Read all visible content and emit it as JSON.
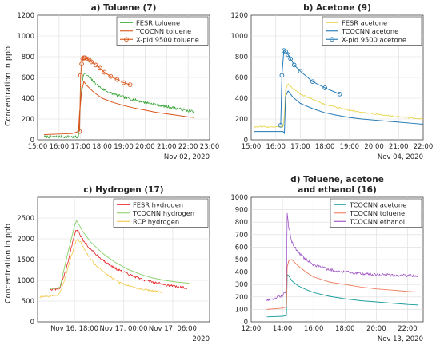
{
  "y_axis_label": "Concentration in ppb",
  "chart_data": [
    {
      "id": "a",
      "type": "line",
      "title": "a) Toluene (7)",
      "title_lines": [
        "a) Toluene (7)"
      ],
      "ylabel": "Concentration in ppb",
      "xlabel": "",
      "xlim": [
        15,
        23
      ],
      "ylim": [
        0,
        1200
      ],
      "grid": true,
      "legend_position": "top-right",
      "x_ticks": [
        {
          "v": 15,
          "label": "15:00"
        },
        {
          "v": 16,
          "label": "16:00"
        },
        {
          "v": 17,
          "label": "17:00"
        },
        {
          "v": 18,
          "label": "18:00"
        },
        {
          "v": 19,
          "label": "19:00"
        },
        {
          "v": 20,
          "label": "20:00"
        },
        {
          "v": 21,
          "label": "21:00"
        },
        {
          "v": 22,
          "label": "22:00"
        },
        {
          "v": 23,
          "label": "23:00"
        }
      ],
      "y_ticks": [
        0,
        200,
        400,
        600,
        800,
        1000,
        1200
      ],
      "date_label": "Nov 02, 2020",
      "series": [
        {
          "name": "FESR toluene",
          "color": "#2ca02c",
          "noisy": true,
          "noise": 14,
          "x": [
            15.3,
            16.5,
            16.85,
            16.9,
            16.95,
            17.05,
            17.15,
            17.3,
            17.6,
            18.0,
            18.5,
            19.0,
            19.5,
            20.0,
            20.5,
            21.0,
            21.5,
            22.0,
            22.3
          ],
          "y": [
            30,
            30,
            25,
            30,
            250,
            520,
            640,
            620,
            560,
            490,
            440,
            410,
            385,
            360,
            340,
            320,
            300,
            280,
            270
          ]
        },
        {
          "name": "TCOCNN toluene",
          "color": "#d95319",
          "x": [
            15.3,
            16.0,
            16.6,
            16.9,
            16.95,
            17.05,
            17.15,
            17.3,
            17.6,
            18.0,
            18.5,
            19.0,
            19.5,
            20.0,
            20.5,
            21.0,
            21.5,
            22.0,
            22.3
          ],
          "y": [
            50,
            55,
            60,
            80,
            250,
            470,
            560,
            520,
            460,
            400,
            360,
            330,
            305,
            285,
            265,
            250,
            235,
            220,
            215
          ]
        },
        {
          "name": "X-pid 9500 toluene",
          "color": "#d95319",
          "markers": true,
          "x": [
            16.95,
            17.0,
            17.05,
            17.1,
            17.15,
            17.2,
            17.3,
            17.4,
            17.5,
            17.7,
            17.9,
            18.1,
            18.4,
            18.7,
            19.0,
            19.3
          ],
          "y": [
            80,
            620,
            730,
            780,
            790,
            790,
            780,
            770,
            750,
            720,
            690,
            650,
            610,
            580,
            550,
            530
          ]
        }
      ]
    },
    {
      "id": "b",
      "type": "line",
      "title": "b) Acetone (9)",
      "title_lines": [
        "b) Acetone (9)"
      ],
      "ylabel": "",
      "xlabel": "",
      "xlim": [
        15,
        22
      ],
      "ylim": [
        0,
        1200
      ],
      "grid": true,
      "legend_position": "top-right",
      "x_ticks": [
        {
          "v": 15,
          "label": "15:00"
        },
        {
          "v": 16,
          "label": "16:00"
        },
        {
          "v": 17,
          "label": "17:00"
        },
        {
          "v": 18,
          "label": "18:00"
        },
        {
          "v": 19,
          "label": "19:00"
        },
        {
          "v": 20,
          "label": "20:00"
        },
        {
          "v": 21,
          "label": "21:00"
        },
        {
          "v": 22,
          "label": "22:00"
        }
      ],
      "y_ticks": [
        0,
        200,
        400,
        600,
        800,
        1000,
        1200
      ],
      "date_label": "Nov 04, 2020",
      "series": [
        {
          "name": "FESR acetone",
          "color": "#e6d23c",
          "noisy": true,
          "noise": 7,
          "x": [
            15.1,
            16.0,
            16.3,
            16.35,
            16.4,
            16.5,
            16.7,
            17.0,
            17.5,
            18.0,
            18.5,
            19.0,
            19.5,
            20.0,
            20.5,
            21.0,
            21.5,
            22.0
          ],
          "y": [
            125,
            125,
            125,
            240,
            480,
            540,
            490,
            440,
            390,
            340,
            310,
            285,
            265,
            250,
            235,
            220,
            210,
            200
          ]
        },
        {
          "name": "TCOCNN acetone",
          "color": "#1f77b4",
          "x": [
            15.1,
            16.0,
            16.3,
            16.35,
            16.4,
            16.5,
            16.7,
            17.0,
            17.5,
            18.0,
            18.5,
            19.0,
            19.5,
            20.0,
            20.5,
            21.0,
            21.5,
            22.0
          ],
          "y": [
            80,
            80,
            80,
            60,
            420,
            470,
            410,
            350,
            300,
            260,
            235,
            215,
            200,
            190,
            180,
            170,
            160,
            150
          ]
        },
        {
          "name": "X-pid 9500 acetone",
          "color": "#1f77b4",
          "markers": true,
          "x": [
            16.2,
            16.25,
            16.33,
            16.4,
            16.5,
            16.6,
            16.75,
            17.0,
            17.5,
            18.0,
            18.6
          ],
          "y": [
            140,
            620,
            860,
            850,
            820,
            780,
            720,
            660,
            560,
            500,
            440
          ]
        }
      ]
    },
    {
      "id": "c",
      "type": "line",
      "title": "c) Hydrogen (17)",
      "title_lines": [
        "c) Hydrogen (17)"
      ],
      "ylabel": "Concentration in ppb",
      "xlabel": "",
      "xlim": [
        0,
        42
      ],
      "ylim": [
        0,
        3000
      ],
      "grid": true,
      "legend_position": "top-right",
      "x_ticks": [
        {
          "v": 9,
          "label": "Nov 16, 18:00"
        },
        {
          "v": 21,
          "label": "Nov 17, 00:00"
        },
        {
          "v": 33,
          "label": "Nov 17, 06:00"
        }
      ],
      "y_ticks": [
        0,
        500,
        1000,
        1500,
        2000,
        2500
      ],
      "date_label": "2020",
      "series": [
        {
          "name": "FESR hydrogen",
          "color": "#e41a1c",
          "noisy": true,
          "noise": 30,
          "x": [
            3.0,
            5.0,
            5.5,
            7.0,
            9.0,
            9.5,
            10.0,
            11.0,
            13.0,
            16.0,
            19.0,
            22.0,
            25.0,
            28.0,
            31.0,
            34.0,
            36.5
          ],
          "y": [
            780,
            790,
            830,
            1280,
            2100,
            2220,
            2150,
            1980,
            1740,
            1480,
            1290,
            1150,
            1040,
            960,
            900,
            850,
            820
          ]
        },
        {
          "name": "TCOCNN hydrogen",
          "color": "#8fd16f",
          "x": [
            3.0,
            5.0,
            5.5,
            7.0,
            9.0,
            9.5,
            10.0,
            11.0,
            13.0,
            16.0,
            19.0,
            22.0,
            25.0,
            28.0,
            31.0,
            34.0,
            37.0
          ],
          "y": [
            800,
            810,
            850,
            1500,
            2300,
            2440,
            2360,
            2180,
            1920,
            1640,
            1430,
            1270,
            1150,
            1060,
            1000,
            960,
            930
          ]
        },
        {
          "name": "RCP hydrogen",
          "color": "#f2c744",
          "noisy": true,
          "noise": 25,
          "x": [
            0.5,
            5.0,
            5.5,
            7.0,
            9.0,
            9.7,
            10.5,
            12.0,
            14.0,
            17.0,
            20.0,
            23.0,
            26.0,
            29.0,
            30.5
          ],
          "y": [
            600,
            640,
            700,
            1150,
            1850,
            2000,
            1920,
            1650,
            1380,
            1130,
            950,
            840,
            780,
            730,
            700
          ]
        }
      ]
    },
    {
      "id": "d",
      "type": "line",
      "title": "d) Toluene, acetone and ethanol (16)",
      "title_lines": [
        "d) Toluene, acetone",
        "and ethanol (16)"
      ],
      "ylabel": "",
      "xlabel": "",
      "xlim": [
        12,
        23
      ],
      "ylim": [
        0,
        1000
      ],
      "grid": true,
      "legend_position": "top-right",
      "x_ticks": [
        {
          "v": 12,
          "label": "12:00"
        },
        {
          "v": 14,
          "label": "14:00"
        },
        {
          "v": 16,
          "label": "16:00"
        },
        {
          "v": 18,
          "label": "18:00"
        },
        {
          "v": 20,
          "label": "20:00"
        },
        {
          "v": 22,
          "label": "22:00"
        }
      ],
      "y_ticks": [
        0,
        100,
        200,
        300,
        400,
        500,
        600,
        700,
        800,
        900,
        1000
      ],
      "date_label": "Nov 13, 2020",
      "series": [
        {
          "name": "TCOCNN acetone",
          "color": "#1b9e9e",
          "x": [
            13.0,
            14.0,
            14.25,
            14.3,
            14.4,
            14.6,
            15.0,
            15.5,
            16.0,
            17.0,
            18.0,
            19.0,
            20.0,
            21.0,
            22.0,
            22.7
          ],
          "y": [
            40,
            45,
            50,
            380,
            370,
            330,
            290,
            260,
            235,
            205,
            185,
            170,
            160,
            150,
            140,
            135
          ]
        },
        {
          "name": "TCOCNN toluene",
          "color": "#f07f5f",
          "x": [
            13.0,
            14.0,
            14.25,
            14.3,
            14.4,
            14.6,
            15.0,
            15.5,
            16.0,
            17.0,
            18.0,
            19.0,
            20.0,
            21.0,
            22.0,
            22.7
          ],
          "y": [
            100,
            110,
            120,
            440,
            490,
            500,
            450,
            400,
            360,
            320,
            300,
            280,
            265,
            255,
            245,
            240
          ]
        },
        {
          "name": "TCOCNN ethanol",
          "color": "#9b4fc2",
          "noisy": true,
          "noise": 12,
          "x": [
            13.0,
            14.0,
            14.25,
            14.3,
            14.4,
            14.6,
            15.0,
            15.5,
            16.0,
            17.0,
            18.0,
            19.0,
            20.0,
            21.0,
            22.0,
            22.7
          ],
          "y": [
            170,
            210,
            260,
            880,
            760,
            640,
            560,
            500,
            455,
            420,
            400,
            390,
            380,
            375,
            372,
            370
          ]
        }
      ]
    }
  ]
}
